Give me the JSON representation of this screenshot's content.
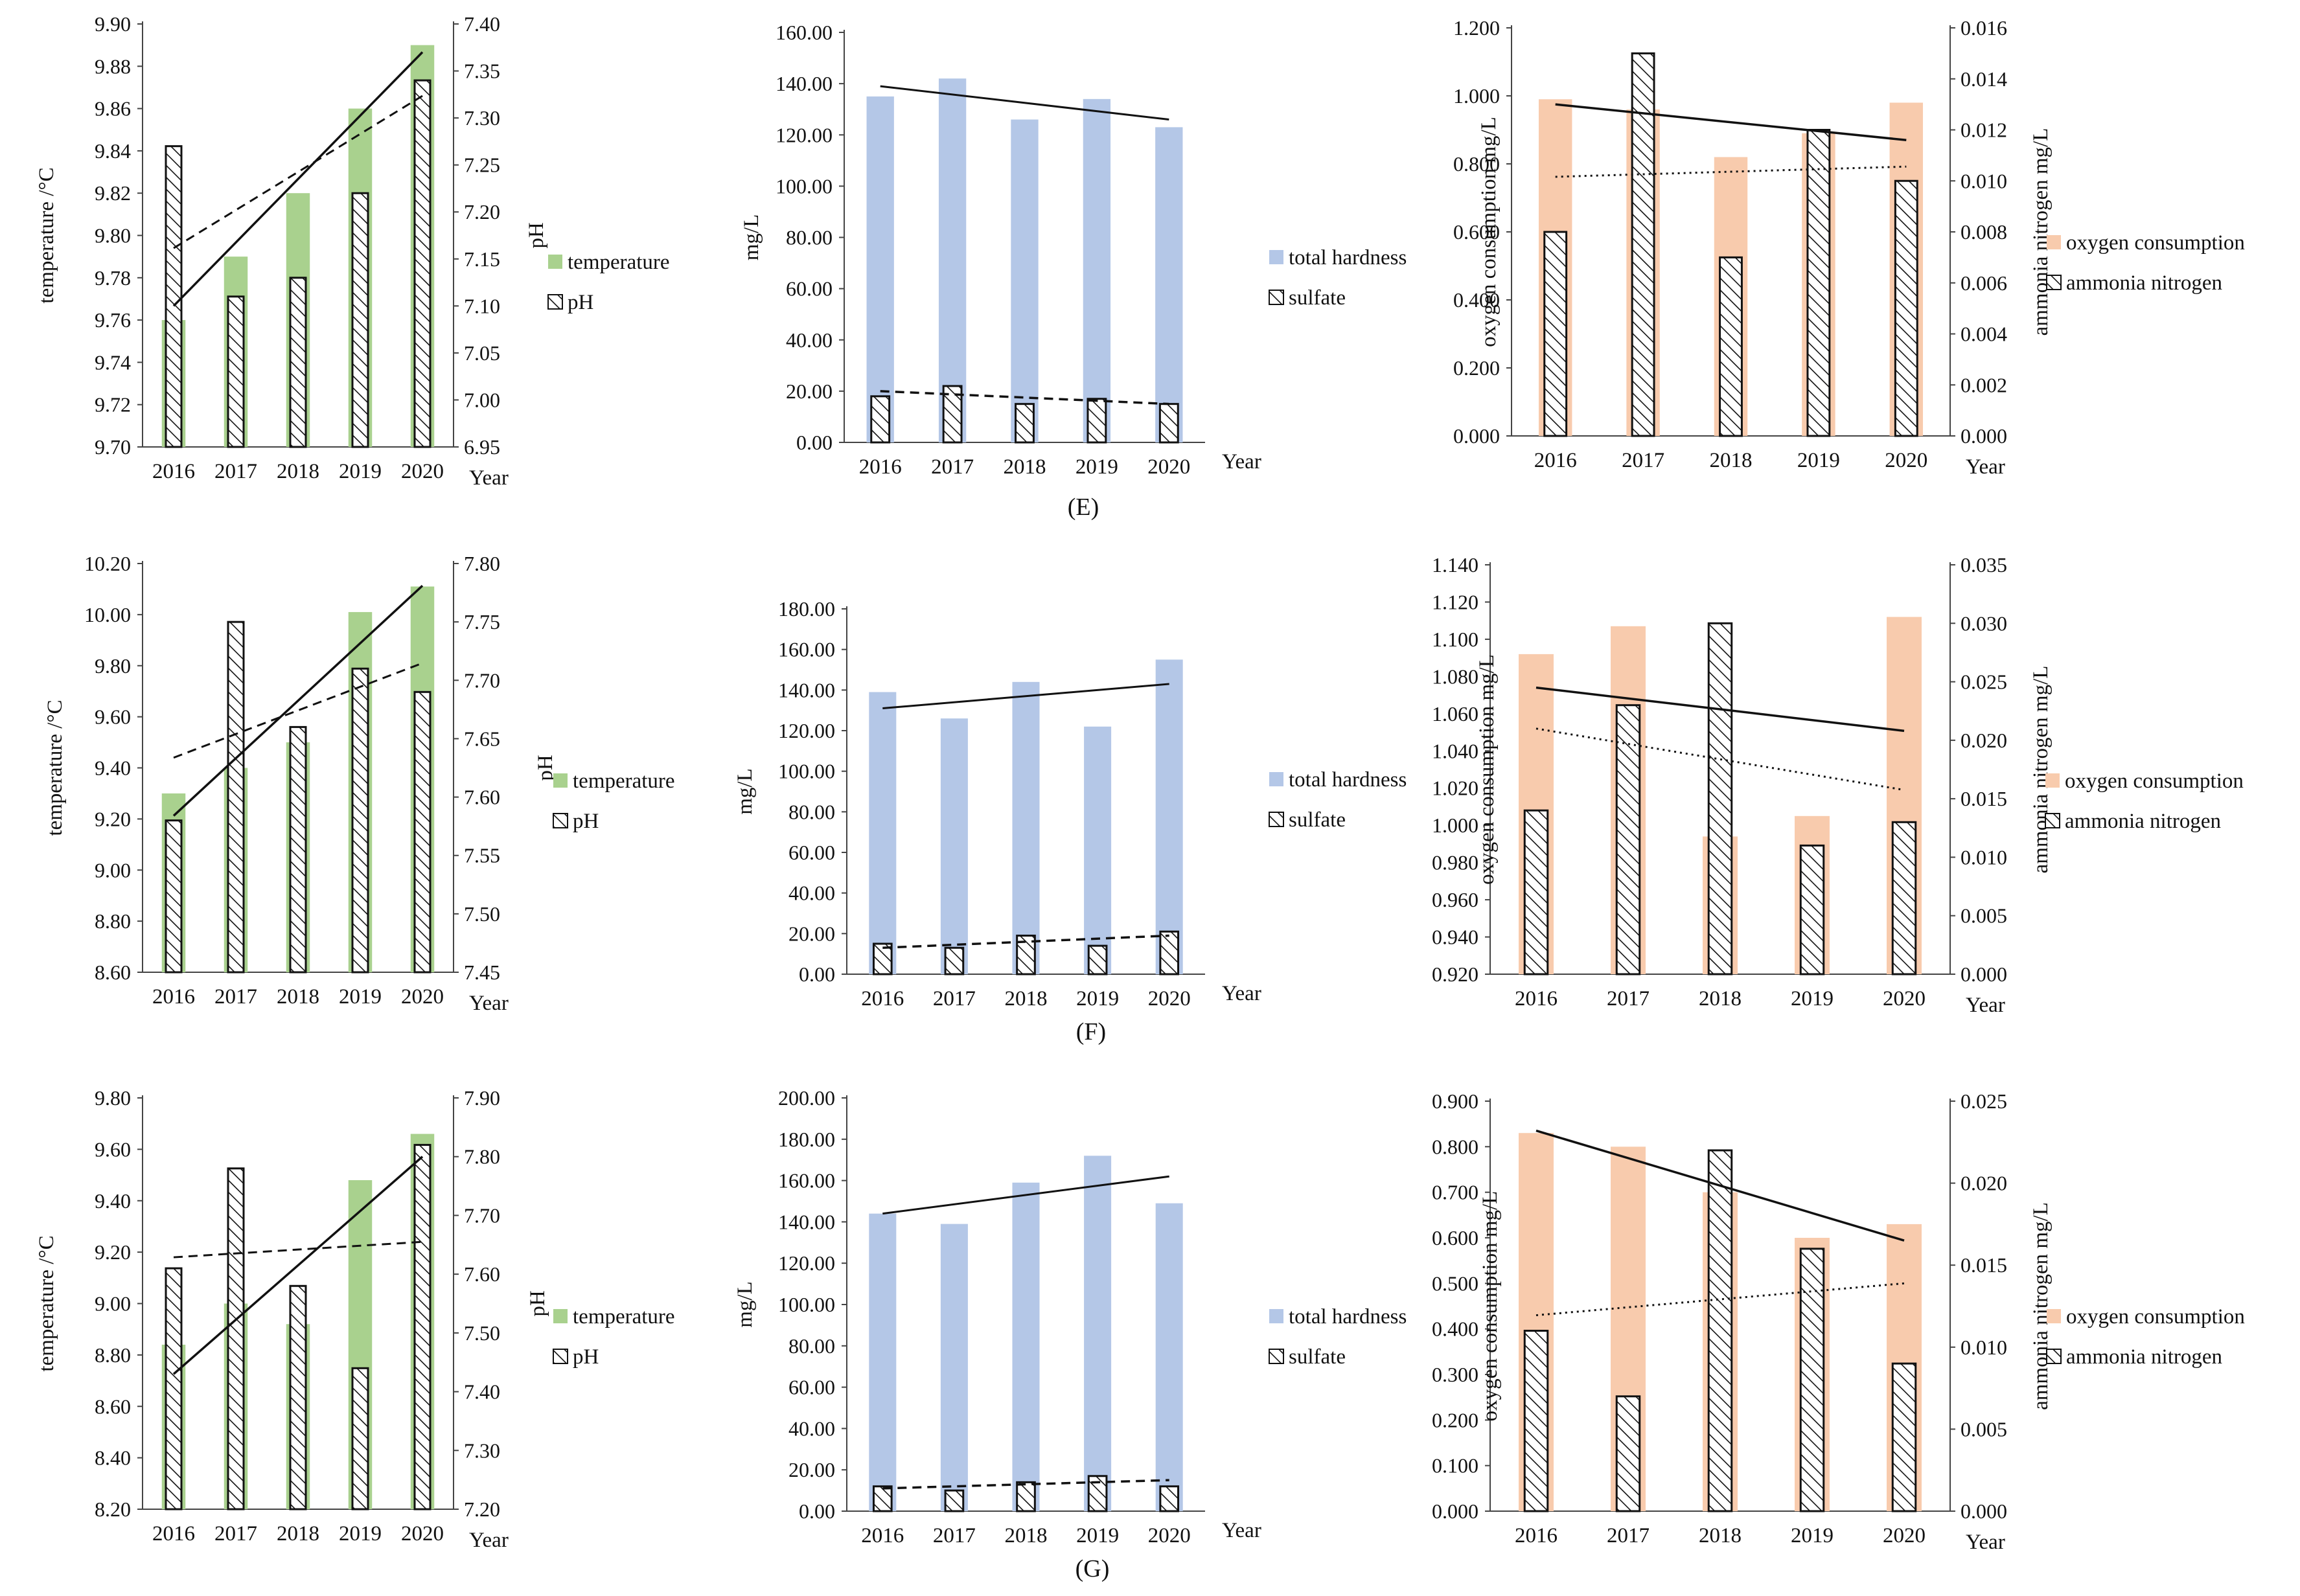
{
  "figure": {
    "panel_labels": [
      "(E)",
      "(F)",
      "(G)"
    ],
    "colors": {
      "temperature": "#a9d18e",
      "hardness": "#b4c7e7",
      "oxygen": "#f8cbad",
      "ink": "#111111"
    }
  },
  "chart_data": [
    {
      "id": "E-temp-ph",
      "type": "bar",
      "title": "",
      "categories": [
        "2016",
        "2017",
        "2018",
        "2019",
        "2020"
      ],
      "xlabel": "Year",
      "left_axis": {
        "label": "temperature /°C",
        "range": [
          9.7,
          9.9
        ],
        "step": 0.02,
        "decimals": 2
      },
      "right_axis": {
        "label": "pH",
        "range": [
          6.95,
          7.4
        ],
        "step": 0.05,
        "decimals": 2
      },
      "series": [
        {
          "name": "temperature",
          "axis": "left",
          "style": "solid-green",
          "values": [
            9.76,
            9.79,
            9.82,
            9.86,
            9.89
          ],
          "trend": [
            9.794,
            9.866
          ]
        },
        {
          "name": "pH",
          "axis": "right",
          "style": "hatched",
          "values": [
            7.27,
            7.11,
            7.13,
            7.22,
            7.34
          ],
          "trend": [
            7.1,
            7.37
          ]
        }
      ],
      "legend": [
        "temperature",
        "pH"
      ]
    },
    {
      "id": "E-hardness-sulfate",
      "type": "bar",
      "title": "",
      "categories": [
        "2016",
        "2017",
        "2018",
        "2019",
        "2020"
      ],
      "xlabel": "Year",
      "left_axis": {
        "label": "mg/L",
        "range": [
          0,
          160
        ],
        "step": 20,
        "decimals": 2
      },
      "series": [
        {
          "name": "total hardness",
          "axis": "left",
          "style": "solid-blue",
          "values": [
            135,
            142,
            126,
            134,
            123
          ],
          "trend": [
            139,
            126
          ]
        },
        {
          "name": "sulfate",
          "axis": "left",
          "style": "hatched",
          "values": [
            18,
            22,
            15,
            17,
            15
          ],
          "trend": [
            20,
            15
          ]
        }
      ],
      "legend": [
        "total hardness",
        "sulfate"
      ]
    },
    {
      "id": "E-oxygen-ammonia",
      "type": "bar",
      "title": "",
      "categories": [
        "2016",
        "2017",
        "2018",
        "2019",
        "2020"
      ],
      "xlabel": "Year",
      "left_axis": {
        "label": "oxygen consumption  mg/L",
        "range": [
          0,
          1.2
        ],
        "step": 0.2,
        "decimals": 3
      },
      "right_axis": {
        "label": "ammonia nitrogen  mg/L",
        "range": [
          0,
          0.016
        ],
        "step": 0.002,
        "decimals": 3
      },
      "series": [
        {
          "name": "oxygen consumption",
          "axis": "left",
          "style": "solid-orange",
          "values": [
            0.99,
            0.96,
            0.82,
            0.89,
            0.98
          ],
          "trend": [
            0.762,
            0.792
          ]
        },
        {
          "name": "ammonia nitrogen",
          "axis": "right",
          "style": "hatched",
          "values": [
            0.008,
            0.015,
            0.007,
            0.012,
            0.01
          ],
          "trend": [
            0.013,
            0.0116
          ]
        }
      ],
      "legend": [
        "oxygen consumption",
        "ammonia nitrogen"
      ]
    },
    {
      "id": "F-temp-ph",
      "type": "bar",
      "title": "",
      "categories": [
        "2016",
        "2017",
        "2018",
        "2019",
        "2020"
      ],
      "xlabel": "Year",
      "left_axis": {
        "label": "temperature /°C",
        "range": [
          8.6,
          10.2
        ],
        "step": 0.2,
        "decimals": 2
      },
      "right_axis": {
        "label": "pH",
        "range": [
          7.45,
          7.8
        ],
        "step": 0.05,
        "decimals": 2
      },
      "series": [
        {
          "name": "temperature",
          "axis": "left",
          "style": "solid-green",
          "values": [
            9.3,
            9.4,
            9.5,
            10.01,
            10.11
          ],
          "trend": [
            9.44,
            9.81
          ]
        },
        {
          "name": "pH",
          "axis": "right",
          "style": "hatched",
          "values": [
            7.58,
            7.75,
            7.66,
            7.71,
            7.69
          ],
          "trend": [
            7.584,
            7.781
          ]
        }
      ],
      "legend": [
        "temperature",
        "pH"
      ]
    },
    {
      "id": "F-hardness-sulfate",
      "type": "bar",
      "title": "",
      "categories": [
        "2016",
        "2017",
        "2018",
        "2019",
        "2020"
      ],
      "xlabel": "Year",
      "left_axis": {
        "label": "mg/L",
        "range": [
          0,
          180
        ],
        "step": 20,
        "decimals": 2
      },
      "series": [
        {
          "name": "total hardness",
          "axis": "left",
          "style": "solid-blue",
          "values": [
            139,
            126,
            144,
            122,
            155
          ],
          "trend": [
            131,
            143
          ]
        },
        {
          "name": "sulfate",
          "axis": "left",
          "style": "hatched",
          "values": [
            15,
            13,
            19,
            14,
            21
          ],
          "trend": [
            13,
            19
          ]
        }
      ],
      "legend": [
        "total hardness",
        "sulfate"
      ]
    },
    {
      "id": "F-oxygen-ammonia",
      "type": "bar",
      "title": "",
      "categories": [
        "2016",
        "2017",
        "2018",
        "2019",
        "2020"
      ],
      "xlabel": "Year",
      "left_axis": {
        "label": "oxygen consumption mg/L",
        "range": [
          0.92,
          1.14
        ],
        "step": 0.02,
        "decimals": 3
      },
      "right_axis": {
        "label": "ammonia nitrogen  mg/L",
        "range": [
          0,
          0.035
        ],
        "step": 0.005,
        "decimals": 3
      },
      "series": [
        {
          "name": "oxygen consumption",
          "axis": "left",
          "style": "solid-orange",
          "values": [
            1.092,
            1.107,
            0.994,
            1.005,
            1.112
          ],
          "trend": [
            1.052,
            1.019
          ]
        },
        {
          "name": "ammonia nitrogen",
          "axis": "right",
          "style": "hatched",
          "values": [
            0.014,
            0.023,
            0.03,
            0.011,
            0.013
          ],
          "trend": [
            0.0245,
            0.0208
          ]
        }
      ],
      "legend": [
        "oxygen consumption",
        "ammonia nitrogen"
      ]
    },
    {
      "id": "G-temp-ph",
      "type": "bar",
      "title": "",
      "categories": [
        "2016",
        "2017",
        "2018",
        "2019",
        "2020"
      ],
      "xlabel": "Year",
      "left_axis": {
        "label": "temperature /°C",
        "range": [
          8.2,
          9.8
        ],
        "step": 0.2,
        "decimals": 2
      },
      "right_axis": {
        "label": "pH",
        "range": [
          7.2,
          7.9
        ],
        "step": 0.1,
        "decimals": 2
      },
      "series": [
        {
          "name": "temperature",
          "axis": "left",
          "style": "solid-green",
          "values": [
            8.84,
            9.0,
            8.92,
            9.48,
            9.66
          ],
          "trend": [
            9.18,
            9.24
          ]
        },
        {
          "name": "pH",
          "axis": "right",
          "style": "hatched",
          "values": [
            7.61,
            7.78,
            7.58,
            7.44,
            7.82
          ],
          "trend": [
            7.43,
            7.8
          ]
        }
      ],
      "legend": [
        "temperature",
        "pH"
      ]
    },
    {
      "id": "G-hardness-sulfate",
      "type": "bar",
      "title": "",
      "categories": [
        "2016",
        "2017",
        "2018",
        "2019",
        "2020"
      ],
      "xlabel": "Year",
      "left_axis": {
        "label": "mg/L",
        "range": [
          0,
          200
        ],
        "step": 20,
        "decimals": 2
      },
      "series": [
        {
          "name": "total hardness",
          "axis": "left",
          "style": "solid-blue",
          "values": [
            144,
            139,
            159,
            172,
            149
          ],
          "trend": [
            144,
            162
          ]
        },
        {
          "name": "sulfate",
          "axis": "left",
          "style": "hatched",
          "values": [
            12,
            10,
            14,
            17,
            12
          ],
          "trend": [
            11,
            15
          ]
        }
      ],
      "legend": [
        "total hardness",
        "sulfate"
      ]
    },
    {
      "id": "G-oxygen-ammonia",
      "type": "bar",
      "title": "",
      "categories": [
        "2016",
        "2017",
        "2018",
        "2019",
        "2020"
      ],
      "xlabel": "Year",
      "left_axis": {
        "label": "oxygen consumption  mg/L",
        "range": [
          0,
          0.9
        ],
        "step": 0.1,
        "decimals": 3
      },
      "right_axis": {
        "label": "ammonia nitrogen  mg/L",
        "range": [
          0,
          0.025
        ],
        "step": 0.005,
        "decimals": 3
      },
      "series": [
        {
          "name": "oxygen consumption",
          "axis": "left",
          "style": "solid-orange",
          "values": [
            0.83,
            0.8,
            0.7,
            0.6,
            0.63
          ],
          "trend": [
            0.43,
            0.5
          ]
        },
        {
          "name": "ammonia nitrogen",
          "axis": "right",
          "style": "hatched",
          "values": [
            0.011,
            0.007,
            0.022,
            0.016,
            0.009
          ],
          "trend": [
            0.0232,
            0.0165
          ]
        }
      ],
      "legend": [
        "oxygen consumption",
        "ammonia nitrogen"
      ]
    }
  ]
}
